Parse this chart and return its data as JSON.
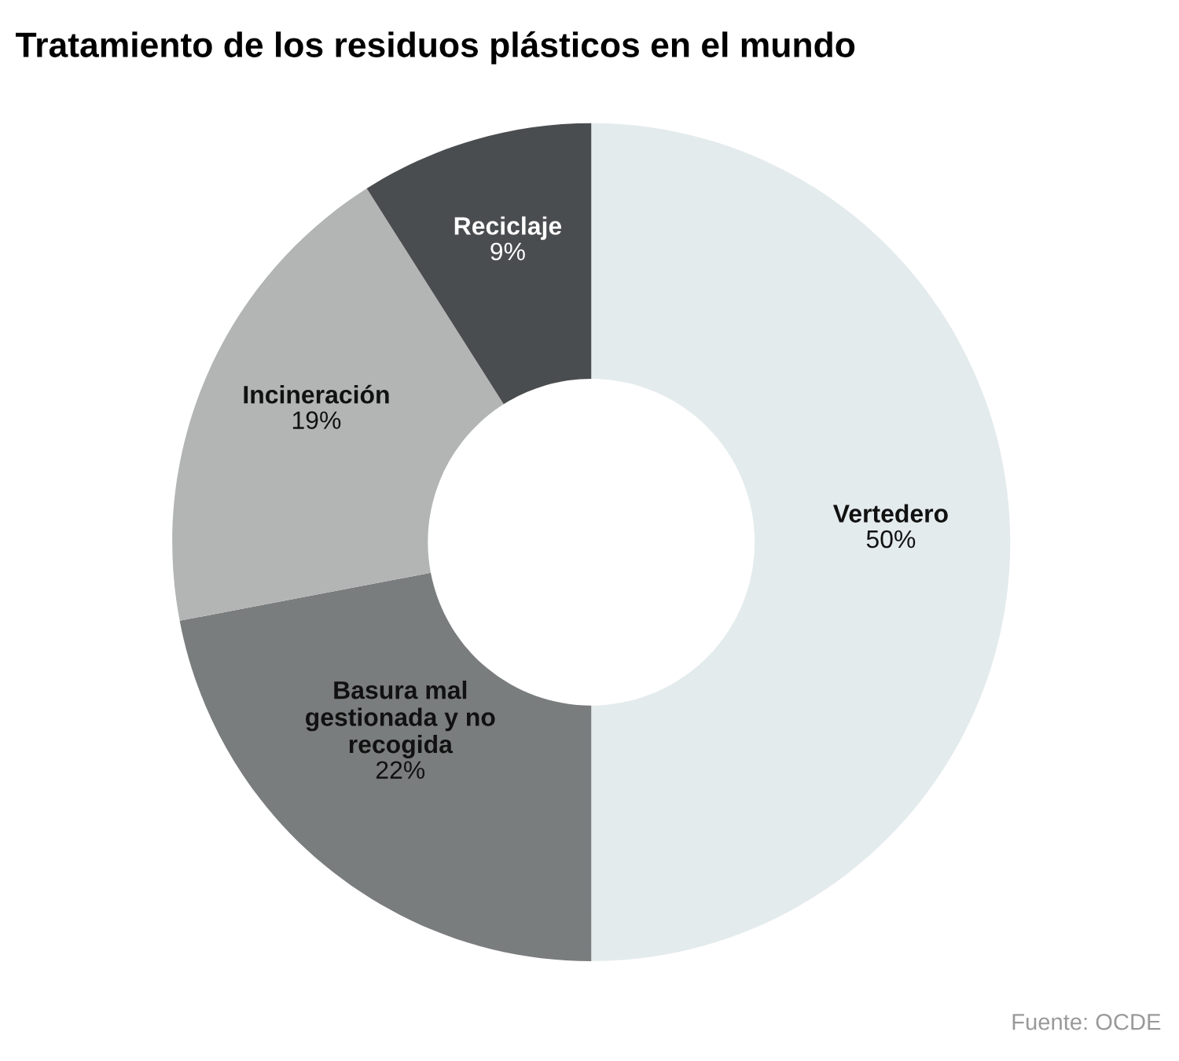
{
  "chart_data": {
    "type": "donut",
    "title": "Tratamiento de los residuos plásticos en el mundo",
    "categories": [
      "Vertedero",
      "Basura mal\ngestionada y no\nrecogida",
      "Incineración",
      "Reciclaje"
    ],
    "values": [
      50,
      22,
      19,
      9
    ],
    "value_labels": [
      "50%",
      "22%",
      "19%",
      "9%"
    ],
    "colors": [
      "#e4ebed",
      "#7a7d7e",
      "#b3b5b5",
      "#4a4d4f"
    ],
    "annotations": [
      "Fuente: OCDE"
    ]
  }
}
